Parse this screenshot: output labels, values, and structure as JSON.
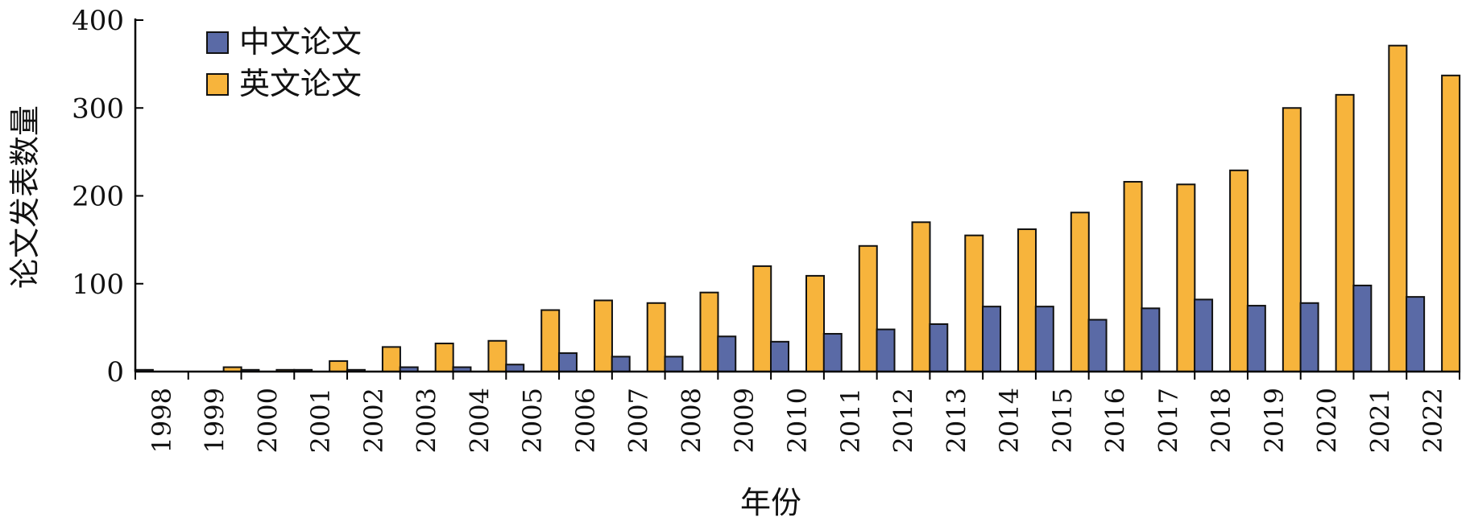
{
  "chart_data": {
    "type": "bar",
    "title": "",
    "xlabel": "年份",
    "ylabel": "论文发表数量",
    "ylim": [
      0,
      400
    ],
    "yticks": [
      "0",
      "100",
      "200",
      "300",
      "400"
    ],
    "grid": false,
    "legend_position": "top-left",
    "categories": [
      "1998",
      "1999",
      "2000",
      "2001",
      "2002",
      "2003",
      "2004",
      "2005",
      "2006",
      "2007",
      "2008",
      "2009",
      "2010",
      "2011",
      "2012",
      "2013",
      "2014",
      "2015",
      "2016",
      "2017",
      "2018",
      "2019",
      "2020",
      "2021",
      "2022"
    ],
    "series": [
      {
        "name": "中文论文",
        "color": "#5a6aa6",
        "values": [
          2,
          0,
          2,
          2,
          2,
          5,
          5,
          8,
          21,
          17,
          17,
          40,
          34,
          43,
          48,
          54,
          74,
          74,
          59,
          72,
          82,
          75,
          78,
          98,
          85
        ]
      },
      {
        "name": "英文论文",
        "color": "#f7b43c",
        "values": [
          0,
          5,
          2,
          12,
          28,
          32,
          35,
          70,
          81,
          78,
          90,
          120,
          109,
          143,
          170,
          155,
          162,
          181,
          216,
          213,
          229,
          300,
          315,
          371,
          337
        ]
      }
    ]
  }
}
